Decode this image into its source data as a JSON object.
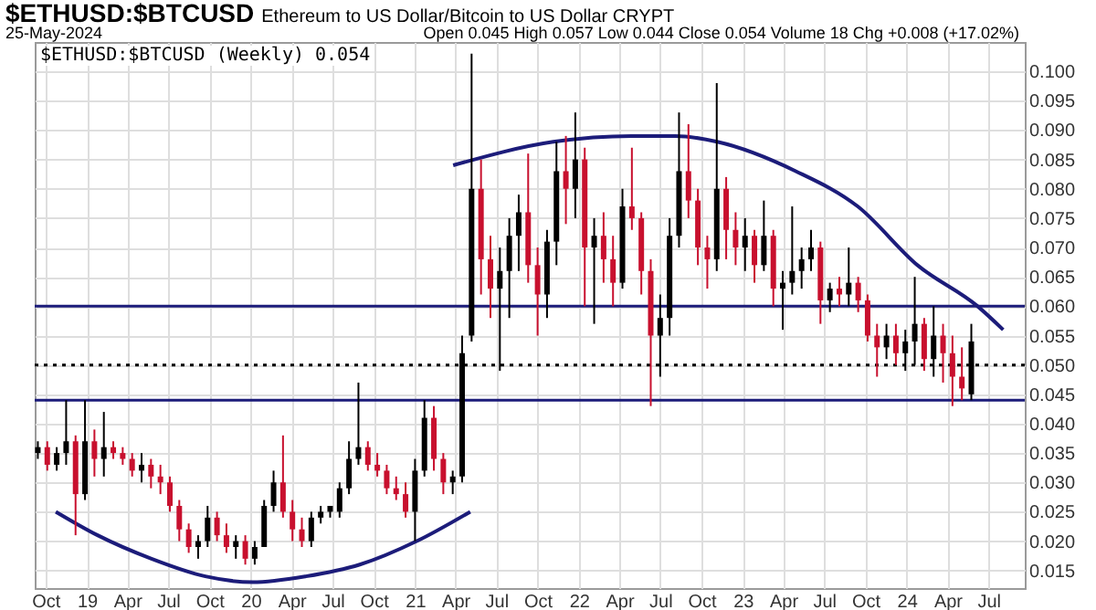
{
  "chart_data": {
    "type": "candlestick",
    "title": "$ETHUSD:$BTCUSD",
    "subtitle": "Ethereum to US Dollar/Bitcoin to US Dollar  CRYPT",
    "annotations": [
      "25-May-2024",
      "Open 0.045 High 0.057 Low 0.044 Close 0.054 Volume 18 Chg +0.008 (+17.02%)",
      "$ETHUSD:$BTCUSD (Weekly) 0.054"
    ],
    "x": [
      "2018-09-14",
      "2018-10-05",
      "2018-10-26",
      "2018-11-16",
      "2018-12-07",
      "2018-12-28",
      "2019-01-18",
      "2019-02-08",
      "2019-03-01",
      "2019-03-22",
      "2019-04-12",
      "2019-05-03",
      "2019-05-24",
      "2019-06-14",
      "2019-07-05",
      "2019-07-26",
      "2019-08-16",
      "2019-09-06",
      "2019-09-27",
      "2019-10-18",
      "2019-11-08",
      "2019-11-29",
      "2019-12-20",
      "2020-01-10",
      "2020-01-31",
      "2020-02-21",
      "2020-03-13",
      "2020-04-03",
      "2020-04-24",
      "2020-05-15",
      "2020-06-05",
      "2020-06-26",
      "2020-07-17",
      "2020-08-07",
      "2020-08-28",
      "2020-09-18",
      "2020-10-09",
      "2020-10-30",
      "2020-11-20",
      "2020-12-11",
      "2021-01-01",
      "2021-01-22",
      "2021-02-12",
      "2021-03-05",
      "2021-03-26",
      "2021-04-16",
      "2021-05-07",
      "2021-05-28",
      "2021-06-18",
      "2021-07-09",
      "2021-07-30",
      "2021-08-20",
      "2021-09-10",
      "2021-10-01",
      "2021-10-22",
      "2021-11-12",
      "2021-12-03",
      "2021-12-24",
      "2022-01-14",
      "2022-02-04",
      "2022-02-25",
      "2022-03-18",
      "2022-04-08",
      "2022-04-29",
      "2022-05-20",
      "2022-06-10",
      "2022-07-01",
      "2022-07-22",
      "2022-08-12",
      "2022-09-02",
      "2022-09-23",
      "2022-10-14",
      "2022-11-04",
      "2022-11-25",
      "2022-12-16",
      "2023-01-06",
      "2023-01-27",
      "2023-02-17",
      "2023-03-10",
      "2023-03-31",
      "2023-04-21",
      "2023-05-12",
      "2023-06-02",
      "2023-06-23",
      "2023-07-14",
      "2023-08-04",
      "2023-08-25",
      "2023-09-15",
      "2023-10-06",
      "2023-10-27",
      "2023-11-17",
      "2023-12-08",
      "2023-12-29",
      "2024-01-19",
      "2024-02-09",
      "2024-03-01",
      "2024-03-22",
      "2024-04-12",
      "2024-05-03",
      "2024-05-24"
    ],
    "ohlc": [
      [
        0.035,
        0.037,
        0.034,
        0.036
      ],
      [
        0.036,
        0.037,
        0.032,
        0.033
      ],
      [
        0.033,
        0.036,
        0.032,
        0.035
      ],
      [
        0.035,
        0.044,
        0.033,
        0.037
      ],
      [
        0.037,
        0.038,
        0.021,
        0.028
      ],
      [
        0.028,
        0.044,
        0.027,
        0.037
      ],
      [
        0.037,
        0.039,
        0.031,
        0.034
      ],
      [
        0.034,
        0.042,
        0.031,
        0.036
      ],
      [
        0.036,
        0.037,
        0.034,
        0.035
      ],
      [
        0.035,
        0.036,
        0.033,
        0.034
      ],
      [
        0.034,
        0.035,
        0.031,
        0.032
      ],
      [
        0.032,
        0.035,
        0.03,
        0.033
      ],
      [
        0.033,
        0.034,
        0.029,
        0.031
      ],
      [
        0.031,
        0.033,
        0.028,
        0.03
      ],
      [
        0.03,
        0.031,
        0.025,
        0.026
      ],
      [
        0.026,
        0.027,
        0.02,
        0.022
      ],
      [
        0.022,
        0.023,
        0.018,
        0.019
      ],
      [
        0.019,
        0.021,
        0.017,
        0.02
      ],
      [
        0.02,
        0.026,
        0.019,
        0.024
      ],
      [
        0.024,
        0.025,
        0.02,
        0.021
      ],
      [
        0.021,
        0.023,
        0.018,
        0.019
      ],
      [
        0.019,
        0.021,
        0.017,
        0.02
      ],
      [
        0.02,
        0.021,
        0.016,
        0.017
      ],
      [
        0.017,
        0.02,
        0.016,
        0.019
      ],
      [
        0.019,
        0.027,
        0.019,
        0.026
      ],
      [
        0.026,
        0.032,
        0.025,
        0.03
      ],
      [
        0.03,
        0.038,
        0.024,
        0.025
      ],
      [
        0.025,
        0.027,
        0.02,
        0.022
      ],
      [
        0.022,
        0.024,
        0.019,
        0.02
      ],
      [
        0.02,
        0.025,
        0.019,
        0.024
      ],
      [
        0.024,
        0.026,
        0.023,
        0.025
      ],
      [
        0.025,
        0.026,
        0.024,
        0.026
      ],
      [
        0.025,
        0.03,
        0.024,
        0.029
      ],
      [
        0.029,
        0.037,
        0.028,
        0.034
      ],
      [
        0.034,
        0.047,
        0.033,
        0.036
      ],
      [
        0.036,
        0.037,
        0.032,
        0.033
      ],
      [
        0.033,
        0.035,
        0.031,
        0.032
      ],
      [
        0.032,
        0.033,
        0.028,
        0.029
      ],
      [
        0.029,
        0.031,
        0.027,
        0.028
      ],
      [
        0.028,
        0.03,
        0.024,
        0.025
      ],
      [
        0.025,
        0.034,
        0.02,
        0.032
      ],
      [
        0.032,
        0.044,
        0.031,
        0.041
      ],
      [
        0.041,
        0.043,
        0.032,
        0.034
      ],
      [
        0.034,
        0.035,
        0.028,
        0.03
      ],
      [
        0.03,
        0.032,
        0.028,
        0.031
      ],
      [
        0.031,
        0.055,
        0.03,
        0.052
      ],
      [
        0.055,
        0.103,
        0.054,
        0.08
      ],
      [
        0.08,
        0.085,
        0.062,
        0.068
      ],
      [
        0.068,
        0.072,
        0.058,
        0.063
      ],
      [
        0.063,
        0.07,
        0.049,
        0.066
      ],
      [
        0.066,
        0.075,
        0.058,
        0.072
      ],
      [
        0.072,
        0.079,
        0.066,
        0.076
      ],
      [
        0.076,
        0.086,
        0.064,
        0.067
      ],
      [
        0.067,
        0.07,
        0.055,
        0.062
      ],
      [
        0.062,
        0.073,
        0.058,
        0.071
      ],
      [
        0.071,
        0.088,
        0.067,
        0.083
      ],
      [
        0.083,
        0.089,
        0.074,
        0.08
      ],
      [
        0.08,
        0.093,
        0.075,
        0.085
      ],
      [
        0.085,
        0.087,
        0.06,
        0.07
      ],
      [
        0.07,
        0.075,
        0.057,
        0.072
      ],
      [
        0.072,
        0.076,
        0.064,
        0.068
      ],
      [
        0.068,
        0.072,
        0.06,
        0.064
      ],
      [
        0.064,
        0.08,
        0.063,
        0.077
      ],
      [
        0.077,
        0.087,
        0.073,
        0.075
      ],
      [
        0.075,
        0.076,
        0.062,
        0.066
      ],
      [
        0.066,
        0.068,
        0.043,
        0.055
      ],
      [
        0.055,
        0.062,
        0.048,
        0.058
      ],
      [
        0.058,
        0.075,
        0.055,
        0.072
      ],
      [
        0.072,
        0.093,
        0.07,
        0.083
      ],
      [
        0.083,
        0.091,
        0.075,
        0.078
      ],
      [
        0.078,
        0.08,
        0.067,
        0.07
      ],
      [
        0.07,
        0.072,
        0.063,
        0.068
      ],
      [
        0.068,
        0.098,
        0.066,
        0.08
      ],
      [
        0.08,
        0.082,
        0.068,
        0.073
      ],
      [
        0.073,
        0.076,
        0.067,
        0.07
      ],
      [
        0.07,
        0.075,
        0.066,
        0.072
      ],
      [
        0.072,
        0.073,
        0.064,
        0.067
      ],
      [
        0.067,
        0.078,
        0.066,
        0.072
      ],
      [
        0.072,
        0.073,
        0.06,
        0.063
      ],
      [
        0.063,
        0.066,
        0.056,
        0.064
      ],
      [
        0.064,
        0.077,
        0.062,
        0.066
      ],
      [
        0.066,
        0.07,
        0.063,
        0.068
      ],
      [
        0.068,
        0.073,
        0.066,
        0.07
      ],
      [
        0.07,
        0.071,
        0.057,
        0.061
      ],
      [
        0.061,
        0.064,
        0.059,
        0.063
      ],
      [
        0.063,
        0.065,
        0.06,
        0.062
      ],
      [
        0.062,
        0.07,
        0.06,
        0.064
      ],
      [
        0.064,
        0.065,
        0.059,
        0.061
      ],
      [
        0.061,
        0.062,
        0.054,
        0.055
      ],
      [
        0.055,
        0.057,
        0.048,
        0.053
      ],
      [
        0.053,
        0.057,
        0.051,
        0.055
      ],
      [
        0.055,
        0.057,
        0.05,
        0.052
      ],
      [
        0.052,
        0.056,
        0.049,
        0.054
      ],
      [
        0.054,
        0.065,
        0.05,
        0.057
      ],
      [
        0.057,
        0.058,
        0.049,
        0.051
      ],
      [
        0.051,
        0.06,
        0.048,
        0.055
      ],
      [
        0.055,
        0.057,
        0.047,
        0.052
      ],
      [
        0.052,
        0.055,
        0.043,
        0.048
      ],
      [
        0.048,
        0.053,
        0.044,
        0.046
      ],
      [
        0.045,
        0.057,
        0.044,
        0.054
      ]
    ],
    "colors": [
      "#000000",
      "#c8102e",
      "#000000",
      "#000000",
      "#c8102e",
      "#000000",
      "#c8102e",
      "#000000",
      "#c8102e",
      "#c8102e",
      "#c8102e",
      "#000000",
      "#c8102e",
      "#c8102e",
      "#c8102e",
      "#c8102e",
      "#c8102e",
      "#000000",
      "#000000",
      "#c8102e",
      "#c8102e",
      "#000000",
      "#c8102e",
      "#000000",
      "#000000",
      "#000000",
      "#c8102e",
      "#c8102e",
      "#c8102e",
      "#000000",
      "#000000",
      "#000000",
      "#000000",
      "#000000",
      "#000000",
      "#c8102e",
      "#c8102e",
      "#c8102e",
      "#c8102e",
      "#c8102e",
      "#000000",
      "#000000",
      "#c8102e",
      "#c8102e",
      "#000000",
      "#000000",
      "#000000",
      "#c8102e",
      "#c8102e",
      "#000000",
      "#000000",
      "#000000",
      "#c8102e",
      "#c8102e",
      "#000000",
      "#000000",
      "#c8102e",
      "#000000",
      "#c8102e",
      "#000000",
      "#c8102e",
      "#c8102e",
      "#000000",
      "#c8102e",
      "#c8102e",
      "#c8102e",
      "#000000",
      "#000000",
      "#000000",
      "#c8102e",
      "#c8102e",
      "#c8102e",
      "#000000",
      "#c8102e",
      "#c8102e",
      "#000000",
      "#c8102e",
      "#000000",
      "#c8102e",
      "#000000",
      "#000000",
      "#000000",
      "#000000",
      "#c8102e",
      "#000000",
      "#c8102e",
      "#000000",
      "#c8102e",
      "#c8102e",
      "#c8102e",
      "#000000",
      "#c8102e",
      "#000000",
      "#000000",
      "#c8102e",
      "#000000",
      "#c8102e",
      "#c8102e",
      "#c8102e",
      "#000000"
    ],
    "series": [
      {
        "type": "line",
        "color": "#1c1c7a",
        "x": [
          "2018-10-24",
          "2019-01-25",
          "2019-05-25",
          "2019-09-22",
          "2020-01-05",
          "2020-05-03",
          "2020-08-31",
          "2021-01-05",
          "2021-05-04"
        ],
        "values": [
          0.025,
          0.021,
          0.017,
          0.014,
          0.013,
          0.014,
          0.016,
          0.02,
          0.025
        ]
      },
      {
        "type": "line",
        "color": "#1c1c7a",
        "x": [
          "2021-03-27",
          "2021-11-05",
          "2022-04-28",
          "2022-08-04",
          "2022-11-05",
          "2023-04-29",
          "2023-09-14",
          "2024-01-25",
          "2024-06-07",
          "2024-08-03"
        ],
        "values": [
          0.084,
          0.088,
          0.089,
          0.089,
          0.088,
          0.083,
          0.077,
          0.067,
          0.06,
          0.056
        ]
      }
    ],
    "ref_lines": [
      {
        "axis": "y",
        "value": 0.06,
        "color": "#1c1c7a",
        "line_style": "solid"
      },
      {
        "axis": "y",
        "value": 0.05,
        "color": "#000000",
        "line_style": "dotted"
      },
      {
        "axis": "y",
        "value": 0.044,
        "color": "#1c1c7a",
        "line_style": "solid"
      }
    ],
    "xlim": [
      "2018-09-07",
      "2024-09-20"
    ],
    "xticks": [
      {
        "value": "2018-10",
        "label": "Oct"
      },
      {
        "value": "2019-01",
        "label": "19"
      },
      {
        "value": "2019-04",
        "label": "Apr"
      },
      {
        "value": "2019-07",
        "label": "Jul"
      },
      {
        "value": "2019-10",
        "label": "Oct"
      },
      {
        "value": "2020-01",
        "label": "20"
      },
      {
        "value": "2020-04",
        "label": "Apr"
      },
      {
        "value": "2020-07",
        "label": "Jul"
      },
      {
        "value": "2020-10",
        "label": "Oct"
      },
      {
        "value": "2021-01",
        "label": "21"
      },
      {
        "value": "2021-04",
        "label": "Apr"
      },
      {
        "value": "2021-07",
        "label": "Jul"
      },
      {
        "value": "2021-10",
        "label": "Oct"
      },
      {
        "value": "2022-01",
        "label": "22"
      },
      {
        "value": "2022-04",
        "label": "Apr"
      },
      {
        "value": "2022-07",
        "label": "Jul"
      },
      {
        "value": "2022-10",
        "label": "Oct"
      },
      {
        "value": "2023-01",
        "label": "23"
      },
      {
        "value": "2023-04",
        "label": "Apr"
      },
      {
        "value": "2023-07",
        "label": "Jul"
      },
      {
        "value": "2023-10",
        "label": "Oct"
      },
      {
        "value": "2024-01",
        "label": "24"
      },
      {
        "value": "2024-04",
        "label": "Apr"
      },
      {
        "value": "2024-07",
        "label": "Jul"
      }
    ],
    "ylim": [
      0.012,
      0.105
    ],
    "yticks": [
      {
        "value": 0.015,
        "label": "0.015"
      },
      {
        "value": 0.02,
        "label": "0.020"
      },
      {
        "value": 0.025,
        "label": "0.025"
      },
      {
        "value": 0.03,
        "label": "0.030"
      },
      {
        "value": 0.035,
        "label": "0.035"
      },
      {
        "value": 0.04,
        "label": "0.040"
      },
      {
        "value": 0.045,
        "label": "0.045"
      },
      {
        "value": 0.05,
        "label": "0.050"
      },
      {
        "value": 0.055,
        "label": "0.055"
      },
      {
        "value": 0.06,
        "label": "0.060"
      },
      {
        "value": 0.065,
        "label": "0.065"
      },
      {
        "value": 0.07,
        "label": "0.070"
      },
      {
        "value": 0.075,
        "label": "0.075"
      },
      {
        "value": 0.08,
        "label": "0.080"
      },
      {
        "value": 0.085,
        "label": "0.085"
      },
      {
        "value": 0.09,
        "label": "0.090"
      },
      {
        "value": 0.095,
        "label": "0.095"
      },
      {
        "value": 0.1,
        "label": "0.100"
      }
    ],
    "grid": true
  }
}
